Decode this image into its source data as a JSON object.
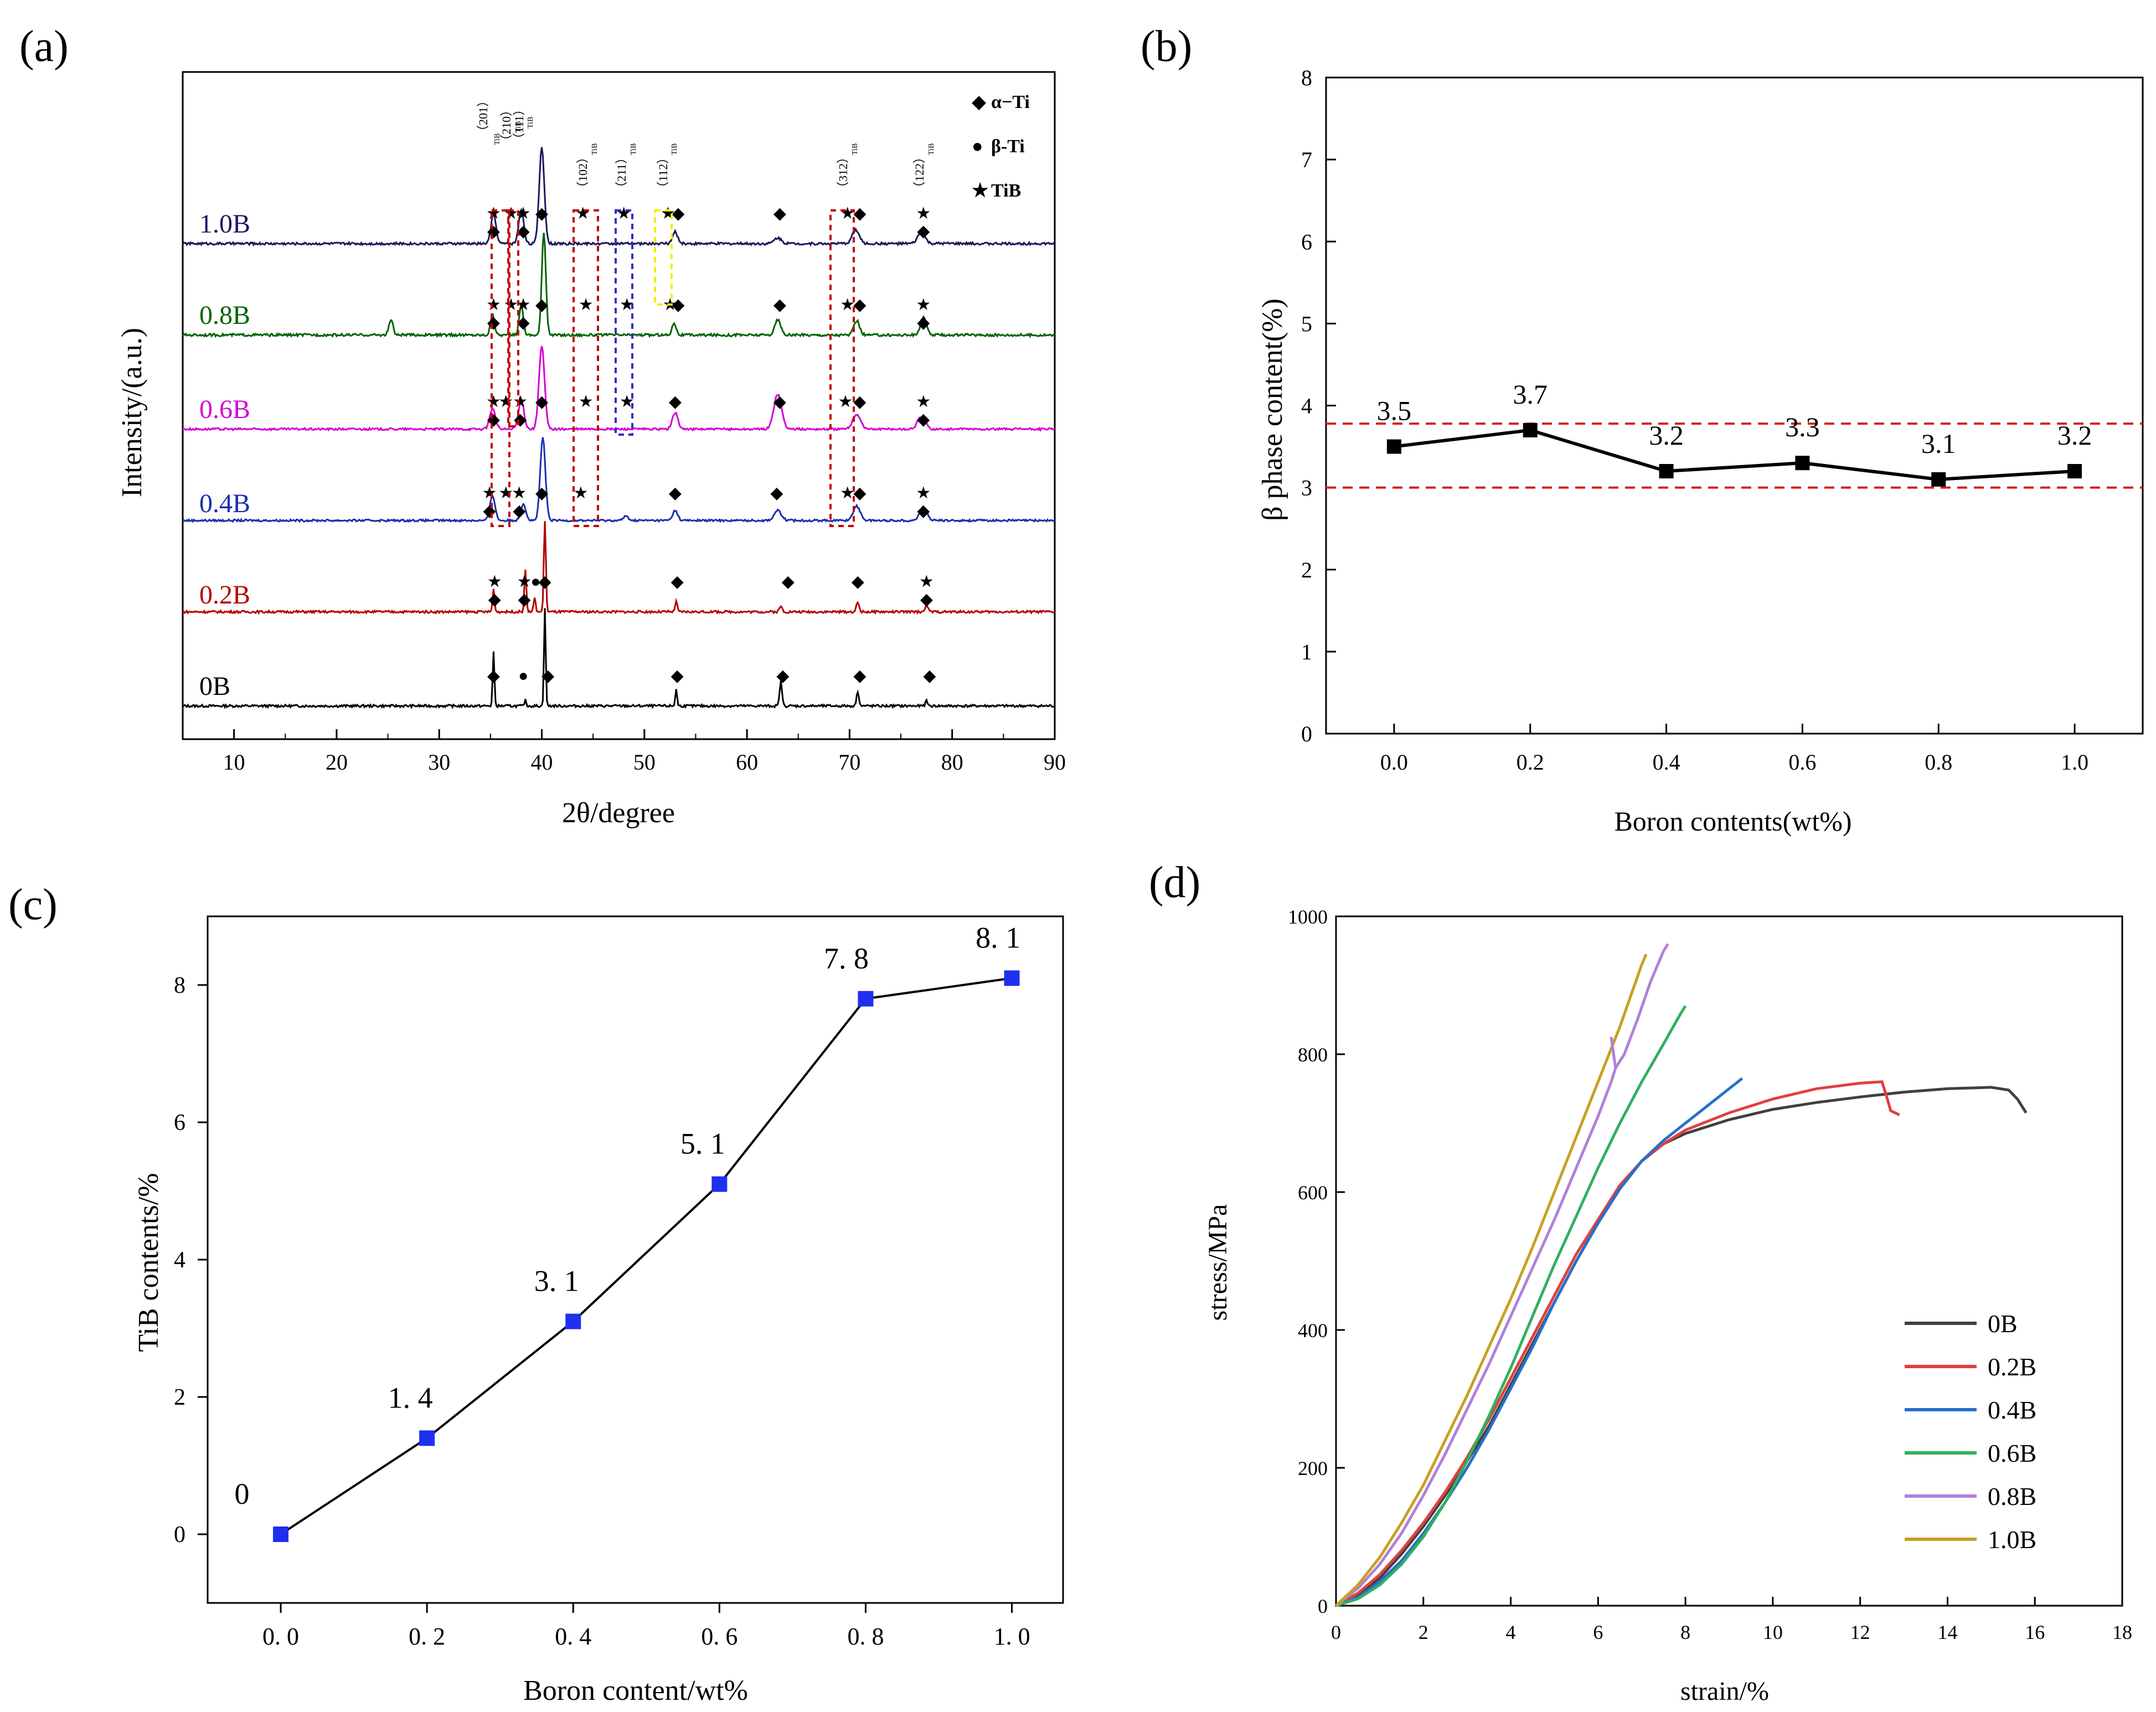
{
  "panel_labels": [
    "(a)",
    "(b)",
    "(c)",
    "(d)"
  ],
  "colors": {
    "axis": "#000000",
    "series_0B": "#000000",
    "series_02B": "#b40000",
    "series_04B": "#1a2fb0",
    "series_06B": "#d400d4",
    "series_08B": "#006400",
    "series_10B": "#1a1a5e",
    "ref_line": "#d42020",
    "tib_marker": "#1f2ff0",
    "d_0B": "#404040",
    "d_02B": "#e04040",
    "d_04B": "#2870c8",
    "d_06B": "#30b060",
    "d_08B": "#b080d8",
    "d_10B": "#c8a020"
  },
  "chart_data": [
    {
      "panel": "(a)",
      "type": "line",
      "xlabel": "2θ/degree",
      "ylabel": "Intensity/(a.u.)",
      "xlim": [
        5,
        90
      ],
      "xticks": [
        10,
        20,
        30,
        40,
        50,
        60,
        70,
        80,
        90
      ],
      "legend": [
        {
          "symbol": "◆",
          "label": "α−Ti"
        },
        {
          "symbol": "●",
          "label": "β-Ti"
        },
        {
          "symbol": "★",
          "label": "TiB"
        }
      ],
      "plane_labels": [
        "（201）",
        "（210）",
        "（111）",
        "（102）",
        "（211）",
        "（112）",
        "（312）",
        "（122）"
      ],
      "plane_sub": "TiB",
      "series": [
        {
          "name": "0B",
          "peaks": [
            [
              35.3,
              0.55
            ],
            [
              38.4,
              0.06
            ],
            [
              40.3,
              1.0
            ],
            [
              53.1,
              0.18
            ],
            [
              63.3,
              0.25
            ],
            [
              70.8,
              0.15
            ],
            [
              77.5,
              0.05
            ]
          ]
        },
        {
          "name": "0.2B",
          "peaks": [
            [
              35.3,
              0.25
            ],
            [
              38.4,
              0.45
            ],
            [
              39.3,
              0.15
            ],
            [
              40.3,
              1.0
            ],
            [
              53.1,
              0.12
            ],
            [
              63.3,
              0.06
            ],
            [
              70.8,
              0.1
            ],
            [
              77.5,
              0.08
            ]
          ]
        },
        {
          "name": "0.4B",
          "peaks": [
            [
              35.2,
              0.3
            ],
            [
              38.2,
              0.2
            ],
            [
              40.1,
              1.0
            ],
            [
              48.2,
              0.05
            ],
            [
              53.0,
              0.12
            ],
            [
              63.0,
              0.12
            ],
            [
              70.7,
              0.17
            ],
            [
              77.2,
              0.16
            ]
          ]
        },
        {
          "name": "0.6B",
          "peaks": [
            [
              35.2,
              0.25
            ],
            [
              38.0,
              0.35
            ],
            [
              40.0,
              1.0
            ],
            [
              53.0,
              0.2
            ],
            [
              63.0,
              0.42
            ],
            [
              70.7,
              0.18
            ],
            [
              77.0,
              0.15
            ]
          ]
        },
        {
          "name": "0.8B",
          "peaks": [
            [
              25.3,
              0.15
            ],
            [
              35.2,
              0.2
            ],
            [
              38.0,
              0.3
            ],
            [
              40.2,
              1.0
            ],
            [
              52.9,
              0.12
            ],
            [
              63.0,
              0.15
            ],
            [
              70.7,
              0.14
            ],
            [
              77.2,
              0.18
            ]
          ]
        },
        {
          "name": "1.0B",
          "peaks": [
            [
              35.3,
              0.3
            ],
            [
              38.0,
              0.35
            ],
            [
              40.0,
              1.0
            ],
            [
              53.0,
              0.12
            ],
            [
              63.0,
              0.06
            ],
            [
              70.6,
              0.14
            ],
            [
              77.0,
              0.12
            ]
          ]
        }
      ],
      "markers": [
        {
          "series": "1.0B",
          "items": [
            [
              35.3,
              "★◆"
            ],
            [
              37.0,
              "★"
            ],
            [
              38.2,
              "★◆"
            ],
            [
              40.0,
              "◆"
            ],
            [
              44.0,
              "★"
            ],
            [
              48.0,
              "★"
            ],
            [
              52.3,
              "★"
            ],
            [
              53.3,
              "◆"
            ],
            [
              63.2,
              "◆"
            ],
            [
              69.8,
              "★"
            ],
            [
              71.0,
              "◆"
            ],
            [
              77.2,
              "★◆"
            ]
          ]
        },
        {
          "series": "0.8B",
          "items": [
            [
              35.3,
              "★◆"
            ],
            [
              37.0,
              "★"
            ],
            [
              38.2,
              "★◆"
            ],
            [
              40.0,
              "◆"
            ],
            [
              44.3,
              "★"
            ],
            [
              48.3,
              "★"
            ],
            [
              52.5,
              "★"
            ],
            [
              53.3,
              "◆"
            ],
            [
              63.2,
              "◆"
            ],
            [
              69.8,
              "★"
            ],
            [
              71.0,
              "◆"
            ],
            [
              77.2,
              "★◆"
            ]
          ]
        },
        {
          "series": "0.6B",
          "items": [
            [
              35.3,
              "★◆"
            ],
            [
              36.5,
              "★"
            ],
            [
              37.9,
              "★◆"
            ],
            [
              40.0,
              "◆"
            ],
            [
              44.3,
              "★"
            ],
            [
              48.3,
              "★"
            ],
            [
              53.0,
              "◆"
            ],
            [
              63.2,
              "◆"
            ],
            [
              69.6,
              "★"
            ],
            [
              71.0,
              "◆"
            ],
            [
              77.2,
              "★◆"
            ]
          ]
        },
        {
          "series": "0.4B",
          "items": [
            [
              34.9,
              "★◆"
            ],
            [
              36.5,
              "★"
            ],
            [
              37.8,
              "★◆"
            ],
            [
              40.0,
              "◆"
            ],
            [
              43.8,
              "★"
            ],
            [
              53.0,
              "◆"
            ],
            [
              62.9,
              "◆"
            ],
            [
              69.8,
              "★"
            ],
            [
              71.0,
              "◆"
            ],
            [
              77.2,
              "★◆"
            ]
          ]
        },
        {
          "series": "0.2B",
          "items": [
            [
              35.4,
              "★◆"
            ],
            [
              38.3,
              "★◆"
            ],
            [
              39.4,
              "●"
            ],
            [
              40.3,
              "◆"
            ],
            [
              53.2,
              "◆"
            ],
            [
              64.0,
              "◆"
            ],
            [
              70.8,
              "◆"
            ],
            [
              77.5,
              "★◆"
            ]
          ]
        },
        {
          "series": "0B",
          "items": [
            [
              35.3,
              "◆"
            ],
            [
              38.2,
              "●"
            ],
            [
              40.6,
              "◆"
            ],
            [
              53.2,
              "◆"
            ],
            [
              63.5,
              "◆"
            ],
            [
              71.0,
              "◆"
            ],
            [
              77.8,
              "◆"
            ]
          ]
        }
      ]
    },
    {
      "panel": "(b)",
      "type": "line",
      "xlabel": "Boron contents(wt%)",
      "ylabel": "β phase content(%)",
      "xlim": [
        -0.1,
        1.1
      ],
      "ylim": [
        0,
        8
      ],
      "xticks": [
        "0.0",
        "0.2",
        "0.4",
        "0.6",
        "0.8",
        "1.0"
      ],
      "yticks": [
        "0",
        "1",
        "2",
        "3",
        "4",
        "5",
        "6",
        "7",
        "8"
      ],
      "x": [
        0.0,
        0.2,
        0.4,
        0.6,
        0.8,
        1.0
      ],
      "values": [
        3.5,
        3.7,
        3.2,
        3.3,
        3.1,
        3.2
      ],
      "data_labels": [
        "3.5",
        "3.7",
        "3.2",
        "3.3",
        "3.1",
        "3.2"
      ],
      "reference_lines": [
        3.0,
        3.78
      ]
    },
    {
      "panel": "(c)",
      "type": "line",
      "xlabel": "Boron content/wt%",
      "ylabel": "TiB contents/%",
      "xlim": [
        -0.1,
        1.07
      ],
      "ylim": [
        -1,
        9
      ],
      "xticks": [
        "0. 0",
        "0. 2",
        "0. 4",
        "0. 6",
        "0. 8",
        "1. 0"
      ],
      "yticks": [
        "0",
        "2",
        "4",
        "6",
        "8"
      ],
      "x": [
        0.0,
        0.2,
        0.4,
        0.6,
        0.8,
        1.0
      ],
      "values": [
        0,
        1.4,
        3.1,
        5.1,
        7.8,
        8.1
      ],
      "data_labels": [
        "0",
        "1. 4",
        "3. 1",
        "5. 1",
        "7. 8",
        "8. 1"
      ]
    },
    {
      "panel": "(d)",
      "type": "line",
      "xlabel": "strain/%",
      "ylabel": "stress/MPa",
      "xlim": [
        0,
        18
      ],
      "ylim": [
        0,
        1000
      ],
      "xticks": [
        "0",
        "2",
        "4",
        "6",
        "8",
        "10",
        "12",
        "14",
        "16",
        "18"
      ],
      "yticks": [
        "0",
        "200",
        "400",
        "600",
        "800",
        "1000"
      ],
      "legend_position": "bottom-right",
      "series": [
        {
          "name": "0B",
          "x": [
            0,
            0.5,
            1,
            1.5,
            2,
            2.5,
            3,
            3.5,
            4,
            4.5,
            5,
            5.5,
            6,
            6.5,
            7,
            7.5,
            8,
            9,
            10,
            11,
            12,
            13,
            14,
            15,
            15.4,
            15.6,
            15.8
          ],
          "y": [
            0,
            15,
            40,
            75,
            115,
            160,
            210,
            260,
            320,
            380,
            440,
            500,
            555,
            605,
            645,
            670,
            685,
            705,
            720,
            730,
            738,
            745,
            750,
            752,
            748,
            735,
            715
          ]
        },
        {
          "name": "0.2B",
          "x": [
            0,
            0.5,
            1,
            1.5,
            2,
            2.5,
            3,
            3.5,
            4,
            4.5,
            5,
            5.5,
            6,
            6.5,
            7,
            7.5,
            8,
            9,
            10,
            11,
            12,
            12.5,
            12.6,
            12.7,
            12.9
          ],
          "y": [
            0,
            18,
            45,
            80,
            120,
            165,
            215,
            270,
            330,
            390,
            450,
            510,
            560,
            610,
            645,
            670,
            690,
            715,
            735,
            750,
            758,
            760,
            740,
            718,
            712
          ]
        },
        {
          "name": "0.4B",
          "x": [
            0,
            0.5,
            1,
            1.5,
            2,
            2.5,
            3,
            3.5,
            4,
            4.5,
            5,
            5.5,
            6,
            6.5,
            7,
            7.5,
            8,
            8.5,
            9,
            9.3
          ],
          "y": [
            0,
            12,
            35,
            65,
            105,
            150,
            200,
            255,
            315,
            375,
            440,
            500,
            555,
            605,
            645,
            675,
            700,
            725,
            750,
            765
          ]
        },
        {
          "name": "0.6B",
          "x": [
            0,
            0.5,
            1,
            1.5,
            2,
            2.5,
            3,
            3.5,
            4,
            4.5,
            5,
            5.5,
            6,
            6.5,
            7,
            7.5,
            7.9,
            8.0
          ],
          "y": [
            0,
            10,
            30,
            60,
            100,
            150,
            210,
            275,
            345,
            420,
            495,
            565,
            635,
            700,
            760,
            815,
            860,
            870
          ]
        },
        {
          "name": "0.8B",
          "x": [
            0,
            0.5,
            1,
            1.5,
            2,
            2.5,
            3,
            3.5,
            4,
            4.5,
            5,
            5.5,
            6,
            6.3,
            6.4,
            6.6,
            6.9,
            7.2,
            7.5,
            7.6
          ],
          "y": [
            0,
            25,
            60,
            105,
            160,
            220,
            285,
            350,
            420,
            490,
            560,
            635,
            710,
            760,
            780,
            800,
            850,
            905,
            950,
            960
          ]
        },
        {
          "name": "1.0B",
          "x": [
            0,
            0.5,
            1,
            1.5,
            2,
            2.5,
            3,
            3.5,
            4,
            4.5,
            5,
            5.5,
            6,
            6.5,
            7,
            7.1
          ],
          "y": [
            0,
            30,
            70,
            120,
            175,
            240,
            305,
            375,
            445,
            520,
            600,
            680,
            760,
            840,
            930,
            945
          ]
        }
      ],
      "extra_series": {
        "name": "0.8B-branch",
        "x": [
          6.3,
          6.4
        ],
        "y": [
          825,
          780
        ]
      }
    }
  ]
}
